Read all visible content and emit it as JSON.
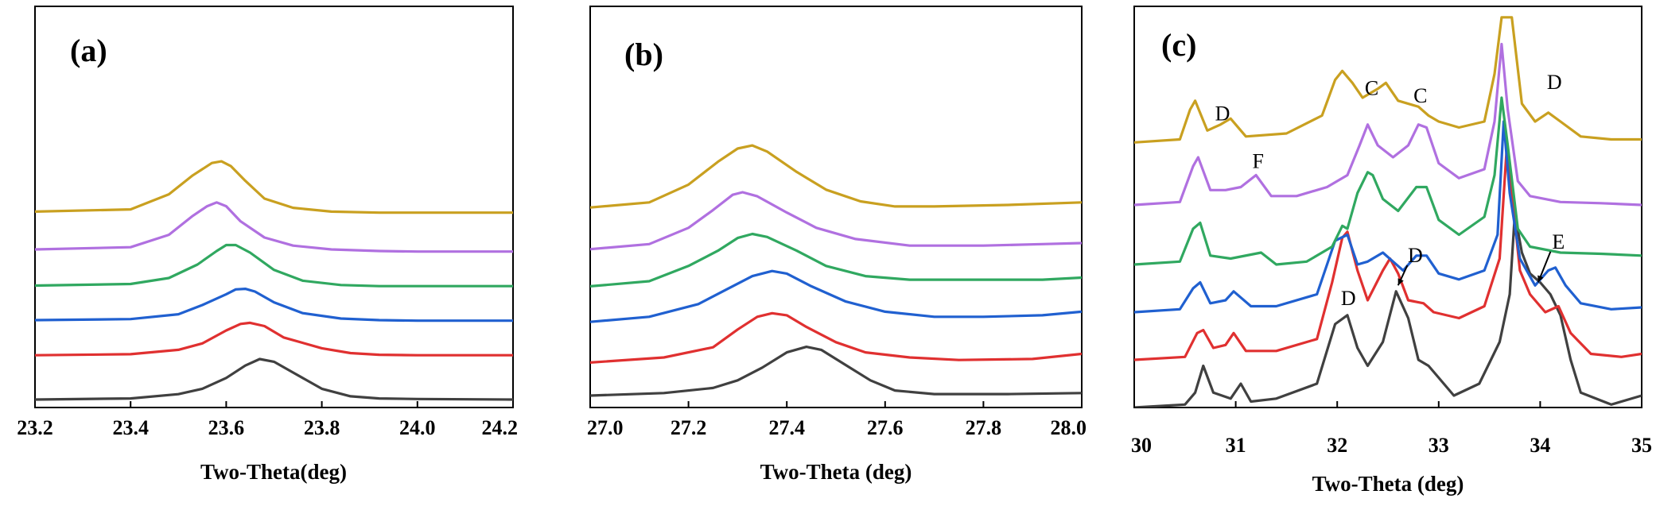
{
  "chart_data": [
    {
      "type": "line",
      "panel_label": "(a)",
      "xlabel": "Two-Theta(deg)",
      "ylabel": "",
      "xlim": [
        23.2,
        24.2
      ],
      "xticks": [
        "23.2",
        "23.4",
        "23.6",
        "23.8",
        "24.0",
        "24.2"
      ],
      "y_ticks_shown": false,
      "series": [
        {
          "name": "black",
          "color": "#404040",
          "x": [
            23.2,
            23.4,
            23.5,
            23.55,
            23.6,
            23.64,
            23.67,
            23.7,
            23.74,
            23.8,
            23.86,
            23.92,
            24.0,
            24.2
          ],
          "y": [
            0.0,
            0.02,
            0.1,
            0.2,
            0.4,
            0.63,
            0.75,
            0.7,
            0.5,
            0.2,
            0.06,
            0.02,
            0.01,
            0.0
          ]
        },
        {
          "name": "red",
          "color": "#e03030",
          "x": [
            23.2,
            23.4,
            23.5,
            23.55,
            23.6,
            23.63,
            23.65,
            23.68,
            23.72,
            23.8,
            23.86,
            23.92,
            24.0,
            24.2
          ],
          "y": [
            0.82,
            0.84,
            0.92,
            1.04,
            1.28,
            1.4,
            1.42,
            1.36,
            1.15,
            0.95,
            0.86,
            0.83,
            0.82,
            0.82
          ]
        },
        {
          "name": "blue",
          "color": "#2060d0",
          "x": [
            23.2,
            23.4,
            23.5,
            23.55,
            23.6,
            23.62,
            23.64,
            23.66,
            23.7,
            23.76,
            23.84,
            23.92,
            24.0,
            24.2
          ],
          "y": [
            1.47,
            1.49,
            1.58,
            1.75,
            1.95,
            2.04,
            2.05,
            2.0,
            1.8,
            1.6,
            1.5,
            1.47,
            1.46,
            1.46
          ]
        },
        {
          "name": "green",
          "color": "#30a860",
          "x": [
            23.2,
            23.4,
            23.48,
            23.54,
            23.58,
            23.6,
            23.62,
            23.65,
            23.7,
            23.76,
            23.84,
            23.92,
            24.0,
            24.2
          ],
          "y": [
            2.11,
            2.14,
            2.25,
            2.5,
            2.75,
            2.86,
            2.86,
            2.72,
            2.4,
            2.2,
            2.12,
            2.1,
            2.1,
            2.1
          ]
        },
        {
          "name": "purple",
          "color": "#b070e0",
          "x": [
            23.2,
            23.4,
            23.48,
            23.53,
            23.56,
            23.58,
            23.6,
            23.63,
            23.68,
            23.74,
            23.82,
            23.92,
            24.0,
            24.2
          ],
          "y": [
            2.78,
            2.82,
            3.05,
            3.4,
            3.58,
            3.65,
            3.58,
            3.3,
            3.0,
            2.85,
            2.78,
            2.75,
            2.74,
            2.74
          ]
        },
        {
          "name": "gold",
          "color": "#c9a020",
          "x": [
            23.2,
            23.4,
            23.48,
            23.53,
            23.57,
            23.59,
            23.61,
            23.64,
            23.68,
            23.74,
            23.82,
            23.92,
            24.0,
            24.2
          ],
          "y": [
            3.48,
            3.52,
            3.8,
            4.15,
            4.38,
            4.41,
            4.32,
            4.05,
            3.72,
            3.55,
            3.48,
            3.46,
            3.46,
            3.46
          ]
        }
      ]
    },
    {
      "type": "line",
      "panel_label": "(b)",
      "xlabel": "Two-Theta (deg)",
      "ylabel": "",
      "xlim": [
        27.0,
        28.0
      ],
      "xticks": [
        "27.0",
        "27.2",
        "27.4",
        "27.6",
        "27.8",
        "28.0"
      ],
      "y_ticks_shown": false,
      "series": [
        {
          "name": "black",
          "color": "#404040",
          "x": [
            27.0,
            27.15,
            27.25,
            27.3,
            27.35,
            27.4,
            27.44,
            27.47,
            27.52,
            27.57,
            27.62,
            27.7,
            27.85,
            28.0
          ],
          "y": [
            0.0,
            0.05,
            0.15,
            0.3,
            0.55,
            0.85,
            0.96,
            0.9,
            0.6,
            0.3,
            0.1,
            0.03,
            0.03,
            0.05
          ]
        },
        {
          "name": "red",
          "color": "#e03030",
          "x": [
            27.0,
            27.15,
            27.25,
            27.3,
            27.34,
            27.37,
            27.4,
            27.44,
            27.5,
            27.56,
            27.65,
            27.75,
            27.9,
            28.0
          ],
          "y": [
            0.65,
            0.75,
            0.95,
            1.3,
            1.55,
            1.62,
            1.58,
            1.35,
            1.05,
            0.85,
            0.75,
            0.7,
            0.72,
            0.82
          ]
        },
        {
          "name": "blue",
          "color": "#2060d0",
          "x": [
            27.0,
            27.12,
            27.22,
            27.28,
            27.33,
            27.37,
            27.4,
            27.45,
            27.52,
            27.6,
            27.7,
            27.8,
            27.92,
            28.0
          ],
          "y": [
            1.45,
            1.55,
            1.8,
            2.1,
            2.35,
            2.45,
            2.4,
            2.15,
            1.85,
            1.65,
            1.55,
            1.55,
            1.58,
            1.65
          ]
        },
        {
          "name": "green",
          "color": "#30a860",
          "x": [
            27.0,
            27.12,
            27.2,
            27.26,
            27.3,
            27.33,
            27.36,
            27.42,
            27.48,
            27.56,
            27.65,
            27.8,
            27.92,
            28.0
          ],
          "y": [
            2.15,
            2.25,
            2.55,
            2.85,
            3.1,
            3.18,
            3.12,
            2.85,
            2.55,
            2.35,
            2.28,
            2.28,
            2.28,
            2.32
          ]
        },
        {
          "name": "purple",
          "color": "#b070e0",
          "x": [
            27.0,
            27.12,
            27.2,
            27.25,
            27.29,
            27.31,
            27.34,
            27.4,
            27.46,
            27.54,
            27.65,
            27.8,
            27.92,
            28.0
          ],
          "y": [
            2.88,
            2.98,
            3.3,
            3.65,
            3.95,
            4.0,
            3.92,
            3.6,
            3.3,
            3.08,
            2.95,
            2.95,
            2.98,
            3.0
          ]
        },
        {
          "name": "gold",
          "color": "#c9a020",
          "x": [
            27.0,
            27.12,
            27.2,
            27.26,
            27.3,
            27.33,
            27.36,
            27.42,
            27.48,
            27.55,
            27.62,
            27.7,
            27.85,
            28.0
          ],
          "y": [
            3.7,
            3.8,
            4.15,
            4.6,
            4.86,
            4.92,
            4.8,
            4.4,
            4.05,
            3.82,
            3.72,
            3.72,
            3.75,
            3.8
          ]
        }
      ]
    },
    {
      "type": "line",
      "panel_label": "(c)",
      "xlabel": "Two-Theta (deg)",
      "ylabel": "",
      "xlim": [
        30,
        35
      ],
      "xticks": [
        "30",
        "31",
        "32",
        "33",
        "34",
        "35"
      ],
      "y_ticks_shown": false,
      "series": [
        {
          "name": "black",
          "color": "#404040",
          "x": [
            30.0,
            30.5,
            30.6,
            30.68,
            30.78,
            30.95,
            31.05,
            31.15,
            31.4,
            31.8,
            31.98,
            32.1,
            32.2,
            32.3,
            32.45,
            32.58,
            32.7,
            32.8,
            32.9,
            33.0,
            33.15,
            33.4,
            33.6,
            33.7,
            33.75,
            33.82,
            33.9,
            34.0,
            34.1,
            34.2,
            34.3,
            34.4,
            34.7,
            35.0
          ],
          "y": [
            0.0,
            0.05,
            0.25,
            0.7,
            0.25,
            0.15,
            0.4,
            0.1,
            0.15,
            0.4,
            1.4,
            1.55,
            1.0,
            0.7,
            1.1,
            1.95,
            1.5,
            0.8,
            0.7,
            0.5,
            0.2,
            0.4,
            1.1,
            1.9,
            3.25,
            2.6,
            2.25,
            2.1,
            1.9,
            1.55,
            0.8,
            0.25,
            0.05,
            0.2
          ]
        },
        {
          "name": "red",
          "color": "#e03030",
          "x": [
            30.0,
            30.5,
            30.62,
            30.68,
            30.78,
            30.9,
            30.98,
            31.1,
            31.4,
            31.8,
            31.95,
            32.05,
            32.1,
            32.2,
            32.3,
            32.45,
            32.52,
            32.6,
            32.7,
            32.85,
            32.95,
            33.2,
            33.45,
            33.6,
            33.67,
            33.72,
            33.8,
            33.9,
            34.05,
            34.18,
            34.3,
            34.5,
            34.8,
            35.0
          ],
          "y": [
            0.8,
            0.85,
            1.25,
            1.3,
            1.0,
            1.05,
            1.25,
            0.95,
            0.95,
            1.15,
            2.1,
            2.85,
            2.95,
            2.3,
            1.8,
            2.3,
            2.5,
            2.25,
            1.8,
            1.75,
            1.6,
            1.5,
            1.7,
            2.5,
            4.35,
            3.6,
            2.3,
            1.9,
            1.6,
            1.7,
            1.25,
            0.9,
            0.85,
            0.9
          ]
        },
        {
          "name": "blue",
          "color": "#2060d0",
          "x": [
            30.0,
            30.45,
            30.58,
            30.65,
            30.75,
            30.9,
            30.98,
            31.15,
            31.4,
            31.8,
            31.98,
            32.1,
            32.2,
            32.3,
            32.45,
            32.55,
            32.65,
            32.78,
            32.88,
            33.0,
            33.2,
            33.45,
            33.58,
            33.64,
            33.7,
            33.8,
            33.95,
            34.08,
            34.15,
            34.25,
            34.4,
            34.7,
            35.0
          ],
          "y": [
            1.6,
            1.65,
            2.0,
            2.1,
            1.75,
            1.8,
            1.95,
            1.7,
            1.7,
            1.9,
            2.8,
            2.9,
            2.4,
            2.45,
            2.6,
            2.45,
            2.3,
            2.55,
            2.55,
            2.25,
            2.15,
            2.3,
            2.9,
            4.8,
            3.6,
            2.5,
            2.05,
            2.3,
            2.35,
            2.05,
            1.75,
            1.65,
            1.68
          ]
        },
        {
          "name": "green",
          "color": "#30a860",
          "x": [
            30.0,
            30.45,
            30.58,
            30.65,
            30.75,
            30.95,
            31.25,
            31.4,
            31.7,
            31.95,
            32.05,
            32.1,
            32.2,
            32.3,
            32.35,
            32.45,
            32.6,
            32.78,
            32.88,
            33.0,
            33.2,
            33.45,
            33.55,
            33.62,
            33.68,
            33.78,
            33.9,
            34.2,
            34.6,
            35.0
          ],
          "y": [
            2.4,
            2.45,
            3.0,
            3.1,
            2.55,
            2.5,
            2.6,
            2.4,
            2.45,
            2.7,
            3.05,
            3.0,
            3.6,
            3.95,
            3.9,
            3.5,
            3.3,
            3.7,
            3.7,
            3.15,
            2.9,
            3.2,
            3.9,
            5.2,
            4.4,
            3.0,
            2.7,
            2.6,
            2.58,
            2.55
          ]
        },
        {
          "name": "purple",
          "color": "#b070e0",
          "x": [
            30.0,
            30.45,
            30.58,
            30.63,
            30.75,
            30.9,
            31.05,
            31.2,
            31.35,
            31.6,
            31.9,
            32.1,
            32.22,
            32.3,
            32.4,
            32.55,
            32.7,
            32.8,
            32.88,
            33.0,
            33.2,
            33.45,
            33.55,
            33.62,
            33.68,
            33.78,
            33.9,
            34.2,
            34.6,
            35.0
          ],
          "y": [
            3.4,
            3.45,
            4.05,
            4.2,
            3.65,
            3.65,
            3.7,
            3.9,
            3.55,
            3.55,
            3.7,
            3.9,
            4.4,
            4.75,
            4.4,
            4.2,
            4.4,
            4.75,
            4.7,
            4.1,
            3.85,
            4.0,
            4.8,
            6.1,
            5.0,
            3.8,
            3.55,
            3.45,
            3.43,
            3.4
          ]
        },
        {
          "name": "gold",
          "color": "#c9a020",
          "x": [
            30.0,
            30.45,
            30.55,
            30.6,
            30.72,
            30.85,
            30.95,
            31.1,
            31.5,
            31.85,
            31.98,
            32.05,
            32.15,
            32.25,
            32.4,
            32.48,
            32.6,
            32.8,
            32.9,
            33.0,
            33.2,
            33.45,
            33.55,
            33.62,
            33.72,
            33.82,
            33.95,
            34.08,
            34.2,
            34.4,
            34.7,
            35.0
          ],
          "y": [
            4.45,
            4.5,
            5.0,
            5.15,
            4.65,
            4.75,
            4.85,
            4.55,
            4.6,
            4.9,
            5.5,
            5.65,
            5.45,
            5.2,
            5.35,
            5.45,
            5.15,
            5.05,
            4.9,
            4.8,
            4.7,
            4.8,
            5.6,
            6.55,
            6.55,
            5.1,
            4.8,
            4.95,
            4.8,
            4.55,
            4.5,
            4.5
          ]
        }
      ],
      "annotations": [
        {
          "text": "D",
          "x": 30.87,
          "y": 4.82
        },
        {
          "text": "C",
          "x": 32.34,
          "y": 5.25
        },
        {
          "text": "C",
          "x": 32.82,
          "y": 5.12
        },
        {
          "text": "D",
          "x": 34.14,
          "y": 5.35
        },
        {
          "text": "F",
          "x": 31.22,
          "y": 4.02
        },
        {
          "text": "D",
          "x": 32.11,
          "y": 1.72
        },
        {
          "text": "D",
          "x": 32.77,
          "y": 2.44,
          "arrow_to": {
            "x": 32.6,
            "y": 2.05
          }
        },
        {
          "text": "E",
          "x": 34.18,
          "y": 2.67,
          "arrow_to": {
            "x": 33.98,
            "y": 2.1
          }
        }
      ]
    }
  ]
}
